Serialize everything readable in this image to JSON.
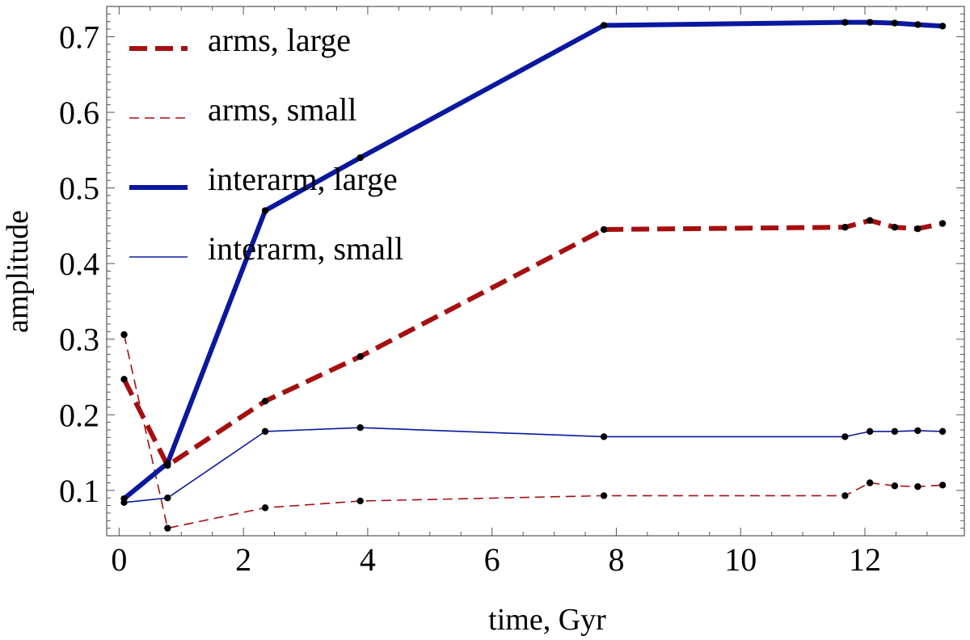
{
  "chart_data": {
    "type": "line",
    "title": "",
    "xlabel": "time, Gyr",
    "ylabel": "amplitude",
    "xlim": [
      -0.2,
      13.6
    ],
    "ylim": [
      0.04,
      0.74
    ],
    "x_ticks": [
      0,
      2,
      4,
      6,
      8,
      10,
      12
    ],
    "y_ticks": [
      0.1,
      0.2,
      0.3,
      0.4,
      0.5,
      0.6,
      0.7
    ],
    "x_tick_labels": [
      "0",
      "2",
      "4",
      "6",
      "8",
      "10",
      "12"
    ],
    "y_tick_labels": [
      "0.1",
      "0.2",
      "0.3",
      "0.4",
      "0.5",
      "0.6",
      "0.7"
    ],
    "grid": false,
    "legend_position": "top-left",
    "x": [
      0.08,
      0.78,
      2.35,
      3.88,
      7.8,
      11.68,
      12.08,
      12.48,
      12.85,
      13.25
    ],
    "series": [
      {
        "name": "arms, large",
        "color": "#a50f0f",
        "style": "thick-dashed",
        "values": [
          0.247,
          0.133,
          0.218,
          0.277,
          0.445,
          0.448,
          0.457,
          0.448,
          0.446,
          0.453
        ]
      },
      {
        "name": "arms, small",
        "color": "#a50f0f",
        "style": "thin-dashed",
        "values": [
          0.306,
          0.05,
          0.077,
          0.086,
          0.093,
          0.093,
          0.11,
          0.106,
          0.105,
          0.107
        ]
      },
      {
        "name": "interarm, large",
        "color": "#0a18a0",
        "style": "thick-solid",
        "values": [
          0.089,
          0.136,
          0.47,
          0.54,
          0.715,
          0.719,
          0.719,
          0.718,
          0.716,
          0.714
        ]
      },
      {
        "name": "interarm, small",
        "color": "#0a18a0",
        "style": "thin-solid",
        "values": [
          0.084,
          0.09,
          0.178,
          0.183,
          0.171,
          0.171,
          0.178,
          0.178,
          0.179,
          0.178
        ]
      }
    ]
  }
}
